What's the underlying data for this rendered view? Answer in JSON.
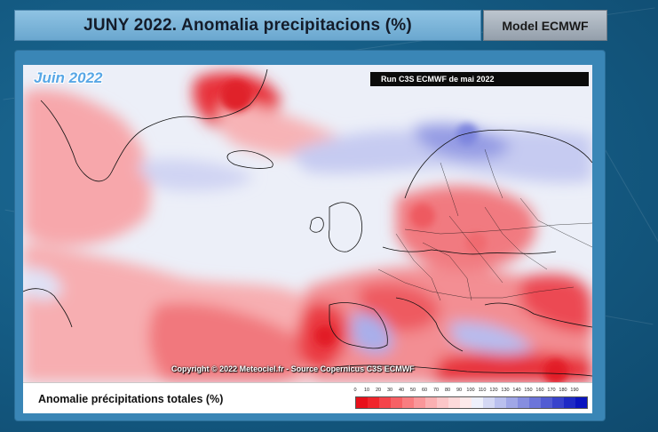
{
  "header": {
    "title": "JUNY 2022.  Anomalia precipitacions (%)",
    "model": "Model ECMWF"
  },
  "map": {
    "title": "Juin 2022",
    "run_label": "Run C3S ECMWF de mai 2022",
    "copyright": "Copyright © 2022 Meteociel.fr - Source Copernicus C3S ECMWF"
  },
  "legend": {
    "title": "Anomalie précipitations totales (%)",
    "ticks": [
      "0",
      "10",
      "20",
      "30",
      "40",
      "50",
      "60",
      "70",
      "80",
      "90",
      "100",
      "110",
      "120",
      "130",
      "140",
      "150",
      "160",
      "170",
      "180",
      "190"
    ],
    "colors": [
      "#e8101a",
      "#f0252c",
      "#f4444a",
      "#f76165",
      "#f97d80",
      "#fa979a",
      "#fbb0b2",
      "#fcc6c8",
      "#fdd9da",
      "#fdeaeb",
      "#eef0fb",
      "#d4d8f4",
      "#bac0ee",
      "#a0a7e7",
      "#868ee0",
      "#6c75da",
      "#525cd3",
      "#3843cc",
      "#1e2ac5",
      "#0a14c0"
    ]
  }
}
